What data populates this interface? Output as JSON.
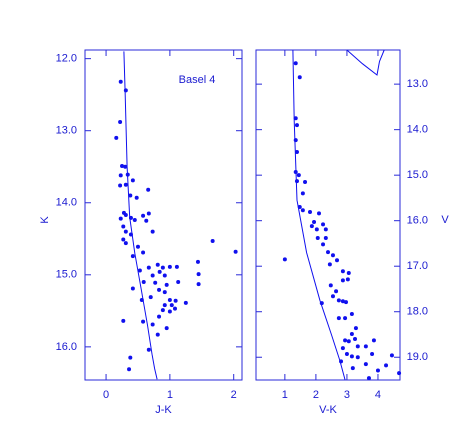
{
  "chart_data": [
    {
      "type": "scatter",
      "annotation": "Basel 4",
      "x_label": "J-K",
      "y_label": "K",
      "y_axis_side": "left",
      "xlim": [
        -0.33,
        2.13
      ],
      "ylim": [
        16.46,
        11.88
      ],
      "xticks": [
        0,
        1,
        2
      ],
      "yticks": [
        {
          "value": 12,
          "label": "12.0"
        },
        {
          "value": 13,
          "label": "13.0"
        },
        {
          "value": 14,
          "label": "14.0"
        },
        {
          "value": 15,
          "label": "15.0"
        },
        {
          "value": 16,
          "label": "16.0"
        }
      ],
      "series": [
        {
          "mode": "markers",
          "color": "#1010ee",
          "x": [
            0.23,
            0.31,
            0.22,
            0.16,
            0.25,
            0.3,
            0.23,
            0.34,
            0.22,
            0.31,
            0.42,
            0.66,
            0.38,
            0.48,
            0.28,
            0.31,
            0.23,
            0.39,
            0.45,
            0.58,
            0.67,
            0.63,
            0.73,
            0.27,
            0.31,
            0.39,
            0.27,
            0.31,
            1.67,
            2.03,
            0.5,
            0.58,
            0.42,
            1.44,
            0.81,
            0.67,
            1.0,
            0.89,
            1.11,
            0.53,
            0.84,
            0.73,
            0.92,
            0.59,
            1.45,
            0.77,
            0.95,
            1.13,
            1.45,
            0.42,
            0.83,
            0.92,
            0.7,
            0.56,
            1.0,
            1.09,
            1.25,
            0.92,
            1.03,
            1.08,
            0.89,
            1.0,
            0.83,
            0.58,
            0.27,
            0.73,
            0.95,
            0.81,
            0.67,
            0.38,
            0.36
          ],
          "values": [
            12.32,
            12.44,
            12.88,
            13.1,
            13.49,
            13.5,
            13.62,
            13.61,
            13.76,
            13.75,
            13.69,
            13.82,
            13.9,
            13.93,
            14.14,
            14.17,
            14.22,
            14.21,
            14.24,
            14.18,
            14.15,
            14.25,
            14.4,
            14.33,
            14.4,
            14.44,
            14.51,
            14.56,
            14.53,
            14.68,
            14.61,
            14.69,
            14.74,
            14.82,
            14.86,
            14.9,
            14.89,
            14.9,
            14.89,
            14.94,
            14.96,
            15.01,
            15.01,
            15.1,
            14.99,
            15.11,
            15.14,
            15.1,
            15.13,
            15.19,
            15.21,
            15.24,
            15.31,
            15.35,
            15.35,
            15.36,
            15.39,
            15.42,
            15.42,
            15.47,
            15.49,
            15.51,
            15.58,
            15.65,
            15.64,
            15.69,
            15.74,
            15.83,
            16.04,
            16.15,
            16.31
          ]
        },
        {
          "mode": "lines",
          "color": "#1010ee",
          "x": [
            0.28,
            0.3,
            0.33,
            0.37,
            0.45,
            0.55,
            0.65,
            0.72,
            0.76,
            0.8
          ],
          "values": [
            11.9,
            12.5,
            13.5,
            14.2,
            14.7,
            15.2,
            15.7,
            16.1,
            16.3,
            16.45
          ]
        }
      ]
    },
    {
      "type": "scatter",
      "x_label": "V-K",
      "y_label": "V",
      "y_axis_side": "right",
      "xlim": [
        0.07,
        4.71
      ],
      "ylim": [
        19.5,
        12.25
      ],
      "xticks": [
        1,
        2,
        3,
        4
      ],
      "yticks": [
        {
          "value": 13,
          "label": "13.0"
        },
        {
          "value": 14,
          "label": "14.0"
        },
        {
          "value": 15,
          "label": "15.0"
        },
        {
          "value": 16,
          "label": "16.0"
        },
        {
          "value": 17,
          "label": "17.0"
        },
        {
          "value": 18,
          "label": "18.0"
        },
        {
          "value": 19,
          "label": "19.0"
        }
      ],
      "series": [
        {
          "mode": "markers",
          "color": "#1010ee",
          "x": [
            1.35,
            1.48,
            1.35,
            1.39,
            1.35,
            1.39,
            1.35,
            1.45,
            1.39,
            1.65,
            1.58,
            1.48,
            1.58,
            1.81,
            2.1,
            1.94,
            2.23,
            1.87,
            2.03,
            2.32,
            2.06,
            2.32,
            2.23,
            2.39,
            2.55,
            1.0,
            2.68,
            2.45,
            2.87,
            3.06,
            3.03,
            2.87,
            2.48,
            2.65,
            2.55,
            2.19,
            2.74,
            2.87,
            2.97,
            3.16,
            2.74,
            2.94,
            3.29,
            3.16,
            2.94,
            3.06,
            3.26,
            3.87,
            2.87,
            3.35,
            3.61,
            3.0,
            3.16,
            3.35,
            3.81,
            4.45,
            2.81,
            3.61,
            4.26,
            3.19,
            4.0,
            4.68,
            3.71
          ],
          "values": [
            12.54,
            12.85,
            13.75,
            13.9,
            14.23,
            14.49,
            14.93,
            15.0,
            15.13,
            15.15,
            15.4,
            15.7,
            15.77,
            15.81,
            15.84,
            16.03,
            16.08,
            16.12,
            16.19,
            16.19,
            16.38,
            16.38,
            16.52,
            16.69,
            16.76,
            16.85,
            16.87,
            16.96,
            17.11,
            17.15,
            17.29,
            17.31,
            17.42,
            17.55,
            17.66,
            17.81,
            17.75,
            17.77,
            17.79,
            18.05,
            18.14,
            18.14,
            18.36,
            18.49,
            18.63,
            18.65,
            18.6,
            18.63,
            18.8,
            18.76,
            18.76,
            18.93,
            18.98,
            19.0,
            18.93,
            18.96,
            19.09,
            19.15,
            19.18,
            19.24,
            19.29,
            19.35,
            19.46
          ]
        },
        {
          "mode": "lines",
          "color": "#1010ee",
          "x": [
            1.26,
            1.3,
            1.39,
            1.7,
            2.13,
            2.5,
            2.77,
            2.94
          ],
          "values": [
            12.25,
            13.8,
            15.55,
            16.7,
            17.75,
            18.5,
            19.07,
            19.5
          ]
        },
        {
          "mode": "lines",
          "color": "#1010ee",
          "x": [
            3.0,
            3.5,
            3.97,
            4.05,
            4.2
          ],
          "values": [
            12.25,
            12.55,
            12.8,
            12.5,
            12.25
          ]
        }
      ]
    }
  ]
}
